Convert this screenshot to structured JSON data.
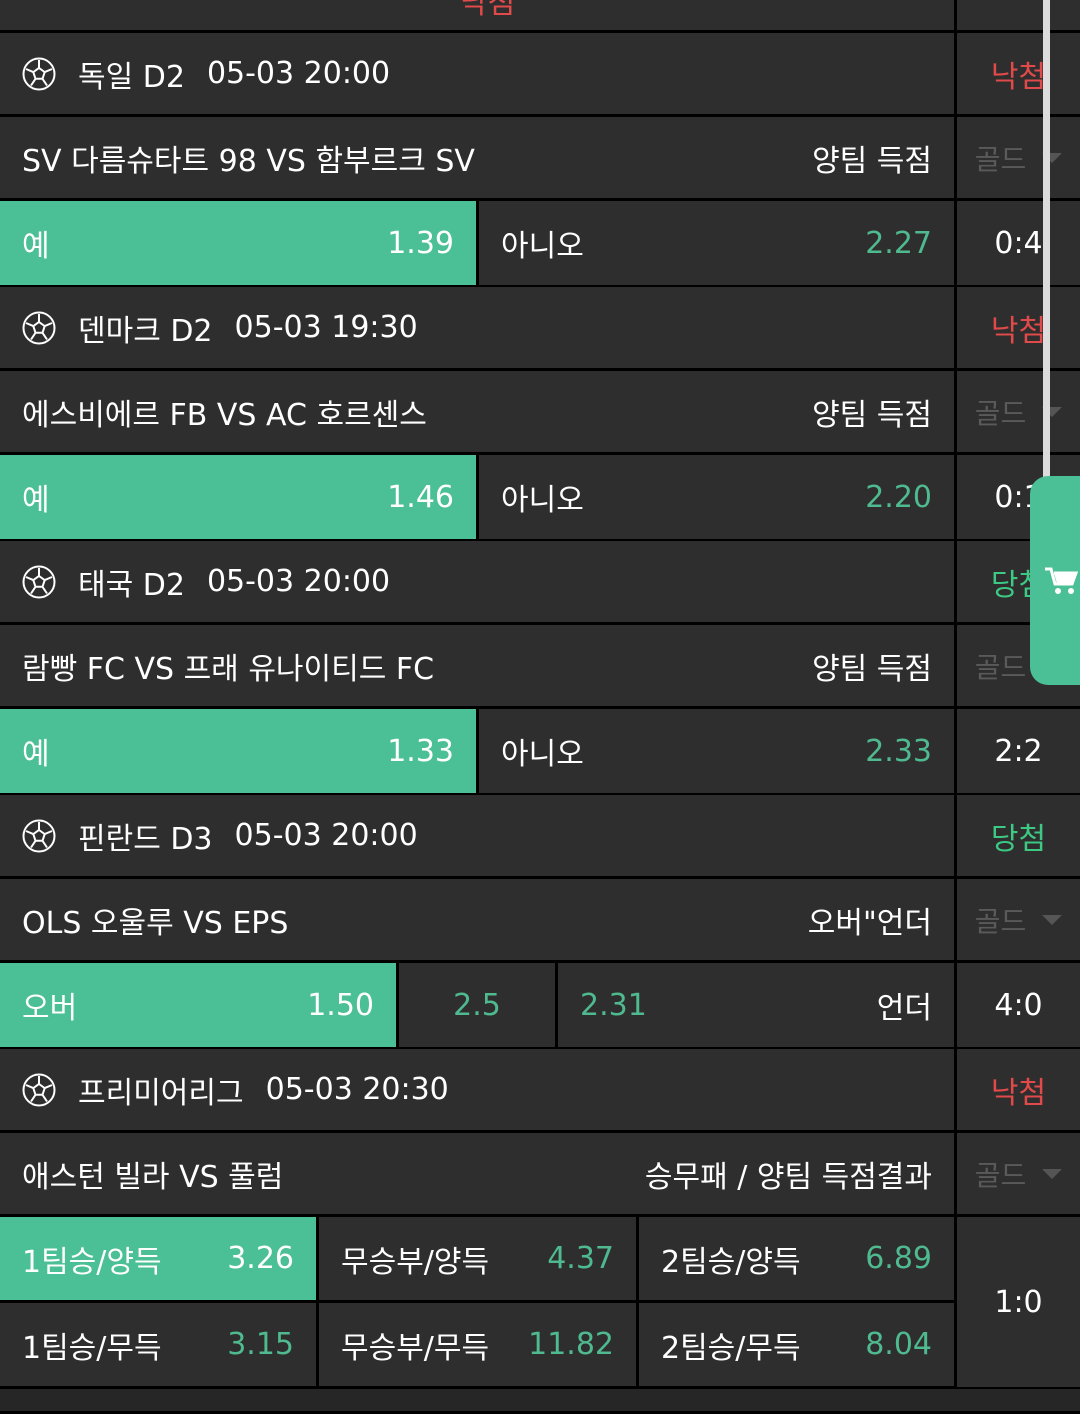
{
  "colors": {
    "selected": "#4bbf96",
    "odds": "#4fb98f",
    "lose": "#e04a4a",
    "win": "#3dc884",
    "background": "#2e2e2e"
  },
  "top_partial": {
    "result": "낙첨"
  },
  "blocks": [
    {
      "league": "독일 D2",
      "datetime": "05-03 20:00",
      "result": "낙첨",
      "result_type": "lose",
      "match": "SV 다름슈타트 98 VS 함부르크 SV",
      "market": "양팀 득점",
      "gold": "골드",
      "odds_rows": [
        [
          {
            "label": "예",
            "odd": "1.39",
            "selected": true
          },
          {
            "label": "아니오",
            "odd": "2.27",
            "selected": false
          }
        ]
      ],
      "score": "0:4"
    },
    {
      "league": "덴마크 D2",
      "datetime": "05-03 19:30",
      "result": "낙첨",
      "result_type": "lose",
      "match": "에스비에르 FB VS AC 호르센스",
      "market": "양팀 득점",
      "gold": "골드",
      "odds_rows": [
        [
          {
            "label": "예",
            "odd": "1.46",
            "selected": true
          },
          {
            "label": "아니오",
            "odd": "2.20",
            "selected": false
          }
        ]
      ],
      "score": "0:1"
    },
    {
      "league": "태국 D2",
      "datetime": "05-03 20:00",
      "result": "당첨",
      "result_type": "win",
      "match": "람빵 FC VS 프래 유나이티드 FC",
      "market": "양팀 득점",
      "gold": "골드",
      "odds_rows": [
        [
          {
            "label": "예",
            "odd": "1.33",
            "selected": true
          },
          {
            "label": "아니오",
            "odd": "2.33",
            "selected": false
          }
        ]
      ],
      "score": "2:2"
    },
    {
      "league": "핀란드 D3",
      "datetime": "05-03 20:00",
      "result": "당첨",
      "result_type": "win",
      "match": "OLS 오울루 VS EPS",
      "market": "오버\"언더",
      "gold": "골드",
      "odds_rows": [
        [
          {
            "label": "오버",
            "odd": "1.50",
            "selected": true
          },
          {
            "label": "",
            "odd": "2.5",
            "selected": false,
            "center": true
          },
          {
            "label": "언더",
            "odd": "2.31",
            "selected": false,
            "reverse": true
          }
        ]
      ],
      "score": "4:0"
    },
    {
      "league": "프리미어리그",
      "datetime": "05-03 20:30",
      "result": "낙첨",
      "result_type": "lose",
      "match": "애스턴 빌라 VS 풀럼",
      "market": "승무패 / 양팀 득점결과",
      "gold": "골드",
      "odds_rows": [
        [
          {
            "label": "1팀승/양득",
            "odd": "3.26",
            "selected": true
          },
          {
            "label": "무승부/양득",
            "odd": "4.37",
            "selected": false
          },
          {
            "label": "2팀승/양득",
            "odd": "6.89",
            "selected": false
          }
        ],
        [
          {
            "label": "1팀승/무득",
            "odd": "3.15",
            "selected": false
          },
          {
            "label": "무승부/무득",
            "odd": "11.82",
            "selected": false
          },
          {
            "label": "2팀승/무득",
            "odd": "8.04",
            "selected": false
          }
        ]
      ],
      "score": "1:0"
    }
  ],
  "icons": {
    "league": "soccer-ball-icon",
    "cart": "cart-icon",
    "dropdown": "caret-down-icon"
  }
}
